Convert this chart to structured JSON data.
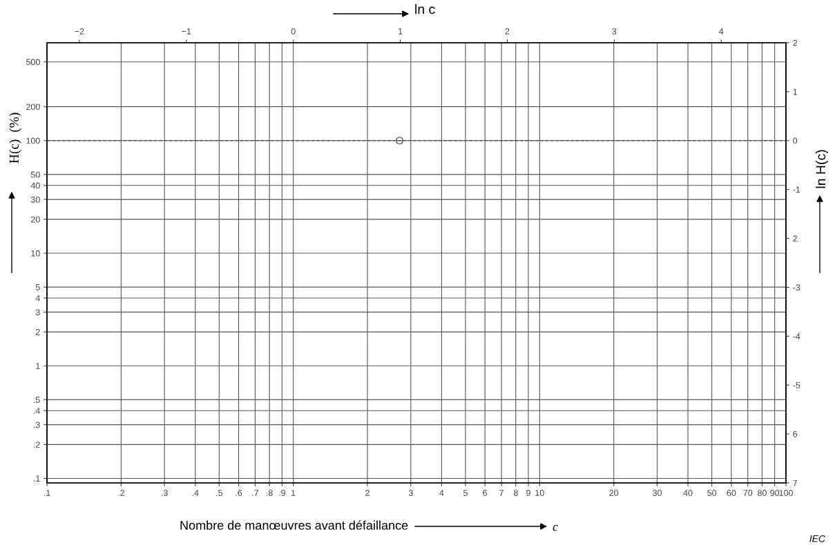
{
  "chart_data": {
    "type": "scatter",
    "x2label": "ln c",
    "xlabel": "Nombre de manœuvres avant défaillance",
    "ylabel": "H(c)  (%)",
    "y2label": "ln H(c)",
    "log": "xy",
    "grid": true,
    "marker": "circle",
    "series": [
      {
        "color": "#555555",
        "x": [
          2.7
        ],
        "values": [
          100
        ]
      }
    ],
    "xlim": [
      0.1,
      100
    ],
    "ylim": [
      0.0912,
      738.9
    ],
    "xticks": [
      {
        "value": 0.1,
        "label": ".1"
      },
      {
        "value": 0.2,
        "label": ".2"
      },
      {
        "value": 0.3,
        "label": ".3"
      },
      {
        "value": 0.4,
        "label": ".4"
      },
      {
        "value": 0.5,
        "label": ".5"
      },
      {
        "value": 0.6,
        "label": ".6"
      },
      {
        "value": 0.7,
        "label": ".7"
      },
      {
        "value": 0.8,
        "label": ".8"
      },
      {
        "value": 0.9,
        "label": ".9"
      },
      1,
      2,
      3,
      4,
      5,
      6,
      7,
      8,
      9,
      10,
      20,
      30,
      40,
      50,
      60,
      70,
      80,
      90,
      100
    ],
    "yticks": [
      {
        "value": 0.1,
        "label": ".1"
      },
      {
        "value": 0.2,
        "label": ".2"
      },
      {
        "value": 0.3,
        "label": ".3"
      },
      {
        "value": 0.4,
        "label": ".4"
      },
      {
        "value": 0.5,
        "label": ".5"
      },
      1,
      2,
      3,
      4,
      5,
      10,
      20,
      30,
      40,
      50,
      100,
      200,
      500
    ],
    "x2lim": [
      -2.303,
      4.605
    ],
    "x2ticks": [
      {
        "value": -2,
        "label": "−2"
      },
      {
        "value": -1,
        "label": "−1"
      },
      0,
      1,
      2,
      3,
      4
    ],
    "y2lim": [
      -7,
      2
    ],
    "y2ticks": [
      2,
      1,
      0,
      {
        "value": -1,
        "label": "-1"
      },
      {
        "value": -2,
        "label": "2"
      },
      {
        "value": -3,
        "label": "-3"
      },
      {
        "value": -4,
        "label": "-4"
      },
      {
        "value": -5,
        "label": "-5"
      },
      {
        "value": -6,
        "label": "6"
      },
      {
        "value": -7,
        "label": "7"
      }
    ],
    "ref_lines": [
      {
        "axis": "y",
        "value": 100,
        "line_style": "dashed",
        "color": "#555555"
      }
    ],
    "annotations": [
      "c",
      "IEC"
    ]
  }
}
